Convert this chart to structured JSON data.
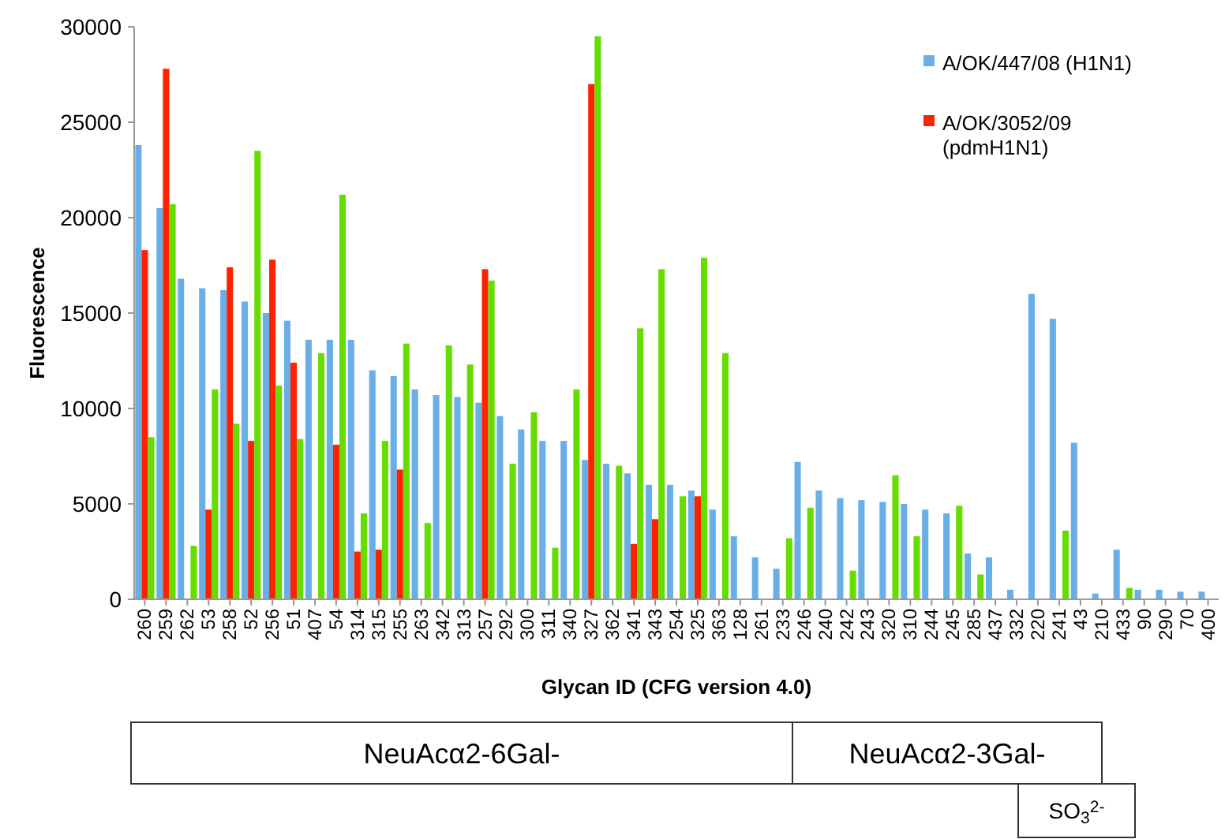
{
  "chart_data": {
    "type": "bar",
    "xlabel": "Glycan ID (CFG version 4.0)",
    "ylabel": "Fluorescence",
    "categories": [
      "260",
      "259",
      "262",
      "53",
      "258",
      "52",
      "256",
      "51",
      "407",
      "54",
      "314",
      "315",
      "255",
      "263",
      "342",
      "313",
      "257",
      "292",
      "300",
      "311",
      "340",
      "327",
      "362",
      "341",
      "343",
      "254",
      "325",
      "363",
      "128",
      "261",
      "233",
      "246",
      "240",
      "242",
      "243",
      "320",
      "310",
      "244",
      "245",
      "285",
      "437",
      "332",
      "220",
      "241",
      "43",
      "210",
      "433",
      "90",
      "290",
      "70",
      "400"
    ],
    "series": [
      {
        "name": "A/OK/447/08 (H1N1)",
        "color": "#6aaee8",
        "values": [
          23800,
          20500,
          16800,
          16300,
          16200,
          15600,
          15000,
          14600,
          13600,
          13600,
          13600,
          12000,
          11700,
          11000,
          10700,
          10600,
          10300,
          9600,
          8900,
          8300,
          8300,
          7300,
          7100,
          6600,
          6000,
          6000,
          5700,
          4700,
          3300,
          2200,
          1600,
          7200,
          5700,
          5300,
          5200,
          5100,
          5000,
          4700,
          4500,
          2400,
          2200,
          500,
          16000,
          14700,
          8200,
          300,
          2600,
          500,
          500,
          400,
          400
        ]
      },
      {
        "name": "A/OK/3052/09 (pdmH1N1)",
        "color": "#ff2200",
        "values": [
          18300,
          27800,
          null,
          4700,
          17400,
          8300,
          17800,
          12400,
          null,
          8100,
          2500,
          2600,
          6800,
          null,
          null,
          null,
          17300,
          null,
          null,
          null,
          null,
          27000,
          null,
          2900,
          4200,
          null,
          5400,
          null,
          null,
          null,
          null,
          null,
          null,
          null,
          null,
          null,
          null,
          null,
          null,
          null,
          null,
          null,
          null,
          null,
          null,
          null,
          null,
          null,
          null,
          null,
          null
        ]
      },
      {
        "color": "#66dd00",
        "values": [
          8500,
          20700,
          2800,
          11000,
          9200,
          23500,
          11200,
          8400,
          12900,
          21200,
          4500,
          8300,
          13400,
          4000,
          13300,
          12300,
          16700,
          7100,
          9800,
          2700,
          11000,
          29500,
          7000,
          14200,
          17300,
          5400,
          17900,
          12900,
          null,
          null,
          3200,
          4800,
          null,
          1500,
          null,
          6500,
          3300,
          null,
          4900,
          1300,
          null,
          null,
          null,
          3600,
          null,
          null,
          600,
          null,
          null,
          null,
          null
        ]
      }
    ],
    "ylim": [
      0,
      30000
    ],
    "yticks": [
      0,
      5000,
      10000,
      15000,
      20000,
      25000,
      30000
    ],
    "grid": false,
    "legend": "top right",
    "annotations": [
      "NeuAcα2-6Gal-",
      "NeuAcα2-3Gal-",
      "SO$_{3}$$^{2-}$"
    ]
  }
}
